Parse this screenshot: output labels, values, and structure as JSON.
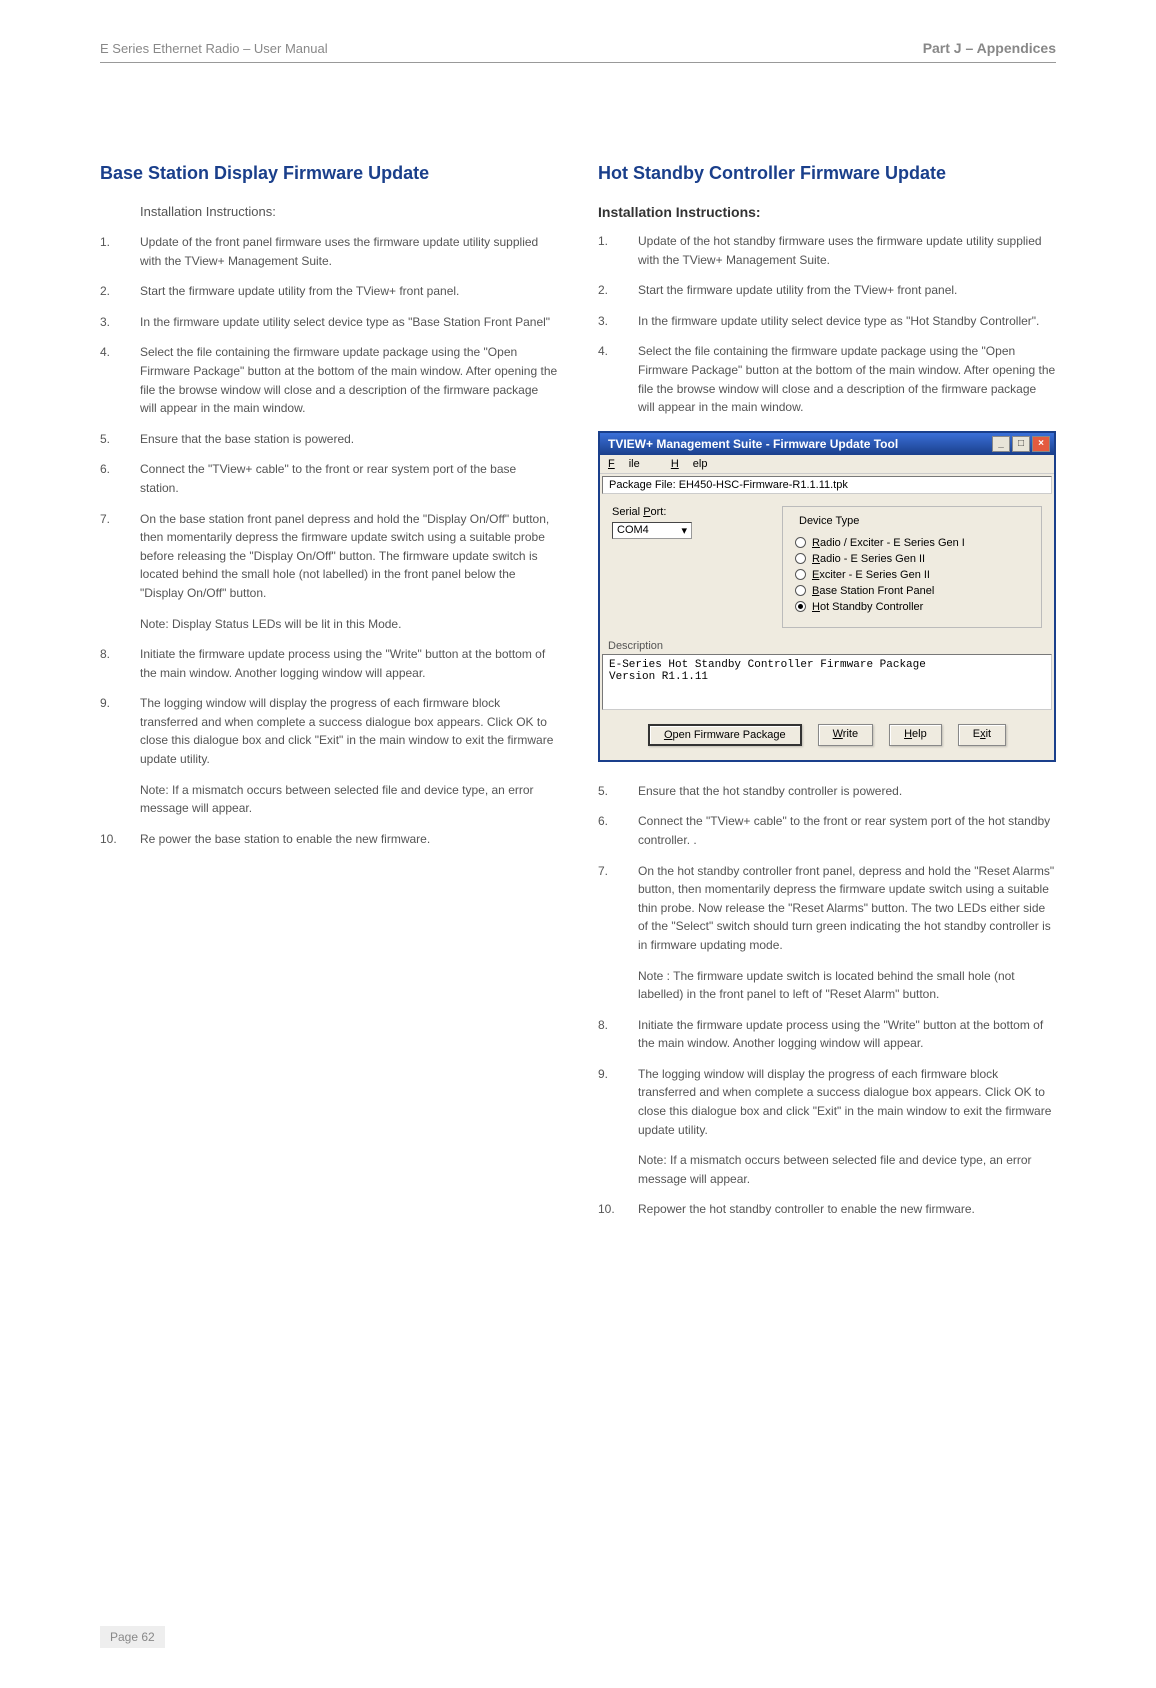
{
  "header": {
    "product": "E Series Ethernet Radio – User Manual",
    "part": "Part J – Appendices"
  },
  "footer": {
    "page": "Page 62"
  },
  "left": {
    "heading": "Base Station Display Firmware Update",
    "subheading": "Installation Instructions:",
    "items": [
      "Update of the front panel firmware uses the firmware update utility supplied with the TView+ Management Suite.",
      "Start the firmware update utility from the TView+ front panel.",
      "In the firmware update utility select device type as \"Base Station Front Panel\"",
      "Select the file containing the firmware update package using the \"Open Firmware Package\" button at the bottom of the main window. After opening the file the browse window will close and a description of the firmware package will appear in the main window.",
      "Ensure that the base station is powered.",
      "Connect the \"TView+ cable\" to the front or rear system port of the base station.",
      "On the base station front panel depress and hold the \"Display On/Off\" button, then momentarily depress the firmware update switch using a suitable probe before releasing the \"Display On/Off\" button. The firmware update switch is located behind the small hole (not labelled) in the front panel below the \"Display On/Off\" button."
    ],
    "note7": "Note: Display Status LEDs will be lit in this Mode.",
    "items2": [
      "Initiate the firmware update process using the \"Write\" button at the bottom of the main window. Another logging window will appear.",
      "The logging window will display the progress of each firmware block transferred and when complete a success dialogue box appears. Click OK to close this dialogue box and click \"Exit\" in the main window to exit the firmware update utility."
    ],
    "note9": "Note: If a mismatch occurs between selected file and device type, an error message will appear.",
    "item10": "Re power the base station to enable the new firmware."
  },
  "right": {
    "heading": "Hot Standby Controller Firmware Update",
    "subheading": "Installation Instructions:",
    "itemsA": [
      "Update of the hot standby firmware uses the firmware update utility supplied with the TView+ Management Suite.",
      "Start the firmware update utility from the TView+ front panel.",
      "In the firmware update utility select device type as \"Hot Standby Controller\".",
      "Select the file containing the firmware update package using the \"Open Firmware Package\" button at the bottom of the main window. After opening the file the browse window will close and a description of the firmware package will appear in the main window."
    ],
    "itemsB": [
      "Ensure that the hot standby controller is powered.",
      "Connect the \"TView+ cable\" to the front or rear system port of the hot standby controller. .",
      "On the hot standby controller front panel, depress and hold the \"Reset Alarms\" button, then momentarily depress the firmware update switch using a suitable thin probe. Now release the \"Reset Alarms\" button. The two LEDs either side of the \"Select\" switch should turn green indicating the hot standby controller is in firmware updating mode."
    ],
    "note7": "Note : The firmware update switch is located behind the small hole (not labelled) in the front panel to left of \"Reset Alarm\" button.",
    "itemsC": [
      "Initiate the firmware update process using the \"Write\" button at the bottom of the main window. Another logging window will appear.",
      "The logging window will display the progress of each firmware block transferred and when complete a success dialogue box appears. Click OK to close this dialogue box and click \"Exit\" in the main window to exit the firmware update utility."
    ],
    "note9": "Note: If a mismatch occurs between selected file and device type, an error message will appear.",
    "item10": "Repower the hot standby controller to enable the new firmware."
  },
  "window": {
    "title": "TVIEW+ Management Suite - Firmware Update Tool",
    "menu": {
      "file": "File",
      "help": "Help"
    },
    "package_label": "Package File:",
    "package_file": "EH450-HSC-Firmware-R1.1.11.tpk",
    "serial_label": "Serial Port:",
    "serial_value": "COM4",
    "device_legend": "Device Type",
    "device_options": [
      {
        "label": "Radio / Exciter - E Series Gen I",
        "selected": false
      },
      {
        "label": "Radio - E Series Gen II",
        "selected": false
      },
      {
        "label": "Exciter - E Series Gen II",
        "selected": false
      },
      {
        "label": "Base Station Front Panel",
        "selected": false
      },
      {
        "label": "Hot Standby Controller",
        "selected": true
      }
    ],
    "desc_label": "Description",
    "desc_text": "E-Series Hot Standby Controller Firmware Package\nVersion R1.1.11",
    "buttons": {
      "open": "Open Firmware Package",
      "write": "Write",
      "help": "Help",
      "exit": "Exit"
    }
  }
}
